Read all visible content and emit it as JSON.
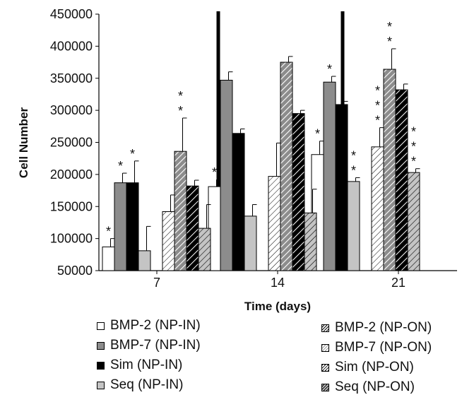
{
  "chart_data": {
    "type": "bar",
    "title": "",
    "xlabel": "Time (days)",
    "ylabel": "Cell Number",
    "ylim": [
      50000,
      450000
    ],
    "yticks": [
      "50000",
      "100000",
      "150000",
      "200000",
      "250000",
      "300000",
      "350000",
      "400000",
      "450000"
    ],
    "ytick_values": [
      50000,
      100000,
      150000,
      200000,
      250000,
      300000,
      350000,
      400000,
      450000
    ],
    "categories": [
      "7",
      "14",
      "21"
    ],
    "grid": false,
    "legend_position": "bottom",
    "series": [
      {
        "name": "BMP-2 (NP-IN)",
        "values": [
          87000,
          181000,
          231000
        ],
        "errors": [
          13000,
          11000,
          21000
        ],
        "stars": [
          1,
          1,
          1
        ],
        "pattern": "solid",
        "color": "#ffffff"
      },
      {
        "name": "BMP-7 (NP-IN)",
        "values": [
          187000,
          347000,
          344000
        ],
        "errors": [
          15000,
          13000,
          9000
        ],
        "stars": [
          1,
          0,
          1
        ],
        "pattern": "solid",
        "color": "#8c8c8c"
      },
      {
        "name": "Sim (NP-IN)",
        "values": [
          187000,
          264000,
          309000
        ],
        "errors": [
          34000,
          7000,
          5000
        ],
        "stars": [
          1,
          0,
          0
        ],
        "pattern": "solid",
        "color": "#000000"
      },
      {
        "name": "Seq (NP-IN)",
        "values": [
          81000,
          135000,
          189000
        ],
        "errors": [
          38000,
          18000,
          6000
        ],
        "stars": [
          0,
          0,
          2
        ],
        "pattern": "solid",
        "color": "#c4c4c4"
      },
      {
        "name": "BMP-2 (NP-ON)",
        "values": [
          142000,
          197000,
          243000
        ],
        "errors": [
          26000,
          52000,
          30000
        ],
        "stars": [
          0,
          0,
          3
        ],
        "pattern": "hatch",
        "color": "#ffffff"
      },
      {
        "name": "BMP-7 (NP-ON)",
        "values": [
          236000,
          375000,
          364000
        ],
        "errors": [
          52000,
          9000,
          32000
        ],
        "stars": [
          2,
          0,
          2
        ],
        "pattern": "hatch",
        "color": "#8c8c8c"
      },
      {
        "name": "Sim (NP-ON)",
        "values": [
          182000,
          295000,
          332000
        ],
        "errors": [
          9000,
          5000,
          9000
        ],
        "stars": [
          0,
          0,
          0
        ],
        "pattern": "hatch",
        "color": "#000000"
      },
      {
        "name": "Seq (NP-ON)",
        "values": [
          116000,
          140000,
          203000
        ],
        "errors": [
          37000,
          37000,
          6000
        ],
        "stars": [
          0,
          0,
          3
        ],
        "pattern": "hatch",
        "color": "#c4c4c4"
      }
    ],
    "dividers_after_category": [
      "7",
      "14"
    ],
    "significance_marker": "*"
  }
}
